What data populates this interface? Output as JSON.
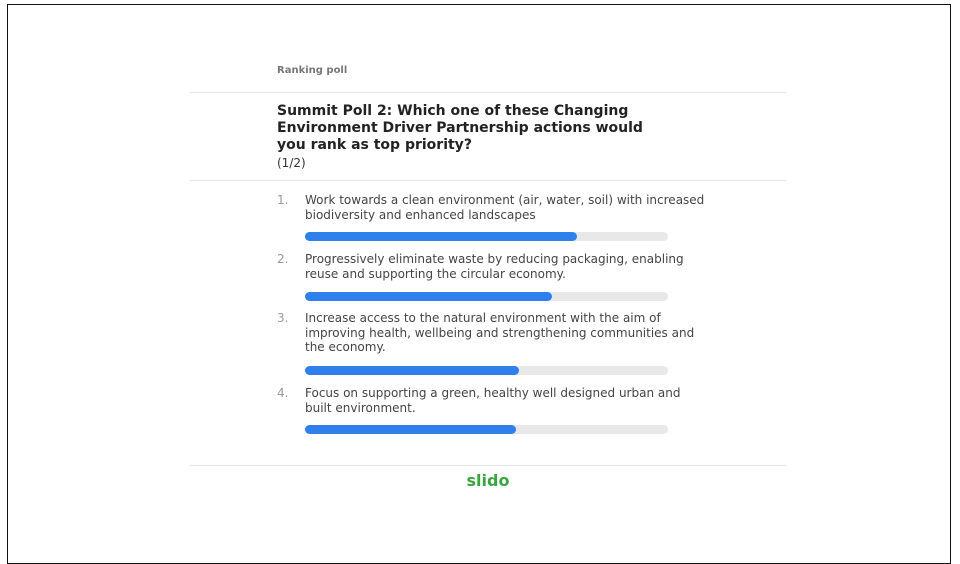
{
  "poll": {
    "kind": "Ranking poll",
    "title": "Summit Poll 2: Which one of these Changing Environment Driver Partnership actions would you rank as top priority?",
    "step": "(1/2)",
    "xlim": [
      0,
      100
    ],
    "options": [
      {
        "rank": "1.",
        "text": "Work towards a clean environment (air, water, soil) with increased biodiversity and enhanced landscapes",
        "value": 75
      },
      {
        "rank": "2.",
        "text": "Progressively eliminate waste by reducing packaging, enabling reuse and supporting the circular economy.",
        "value": 68
      },
      {
        "rank": "3.",
        "text": "Increase access to the natural environment with the aim of improving health, wellbeing and strengthening communities and the economy.",
        "value": 59
      },
      {
        "rank": "4.",
        "text": "Focus on supporting a green, healthy well designed urban and built environment.",
        "value": 58
      }
    ],
    "brand": "slido"
  }
}
